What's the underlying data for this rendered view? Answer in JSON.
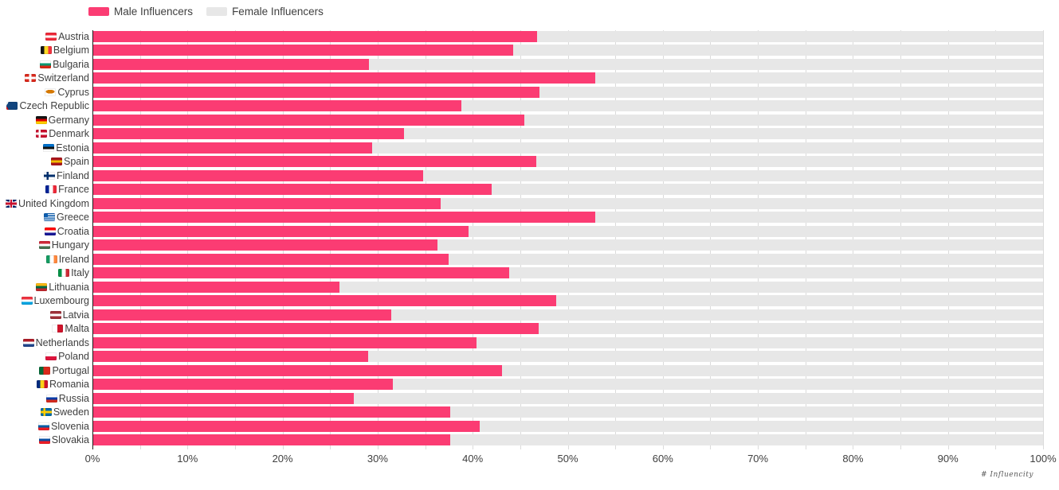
{
  "legend": {
    "male_label": "Male Influencers",
    "female_label": "Female Influencers"
  },
  "colors": {
    "male": "#FB3C73",
    "female": "#E7E7E7",
    "grid": "#DBDBDB",
    "axis": "#1C1C1C",
    "text": "#3F3F3F"
  },
  "x_axis": {
    "ticks": [
      "0%",
      "10%",
      "20%",
      "30%",
      "40%",
      "50%",
      "60%",
      "70%",
      "80%",
      "90%",
      "100%"
    ],
    "min": 0,
    "max": 100,
    "minor_grid_step_pct": 5
  },
  "watermark": "# Influencity",
  "chart_data": {
    "type": "bar",
    "orientation": "horizontal",
    "stacked": true,
    "total": 100,
    "title": "",
    "xlabel": "",
    "ylabel": "",
    "xlim": [
      0,
      100
    ],
    "grid": "vertical gridlines every 5%, behind bars",
    "legend_position": "top-left",
    "categories": [
      "Austria",
      "Belgium",
      "Bulgaria",
      "Switzerland",
      "Cyprus",
      "Czech Republic",
      "Germany",
      "Denmark",
      "Estonia",
      "Spain",
      "Finland",
      "France",
      "United Kingdom",
      "Greece",
      "Croatia",
      "Hungary",
      "Ireland",
      "Italy",
      "Lithuania",
      "Luxembourg",
      "Latvia",
      "Malta",
      "Netherlands",
      "Poland",
      "Portugal",
      "Romania",
      "Russia",
      "Sweden",
      "Slovenia",
      "Slovakia"
    ],
    "series": [
      {
        "name": "Male Influencers",
        "color": "#FB3C73",
        "values": [
          46.8,
          44.3,
          29.1,
          52.9,
          47.0,
          38.8,
          45.4,
          32.8,
          29.4,
          46.7,
          34.8,
          42.0,
          36.6,
          52.9,
          39.6,
          36.3,
          37.5,
          43.8,
          26.0,
          48.8,
          31.4,
          46.9,
          40.4,
          29.0,
          43.1,
          31.6,
          27.5,
          37.6,
          40.7,
          37.6
        ]
      },
      {
        "name": "Female Influencers",
        "color": "#E7E7E7",
        "values": [
          53.2,
          55.7,
          70.9,
          47.1,
          53.0,
          61.2,
          54.6,
          67.2,
          70.6,
          53.3,
          65.2,
          58.0,
          63.4,
          47.1,
          60.4,
          63.7,
          62.5,
          56.2,
          74.0,
          51.2,
          68.6,
          53.1,
          59.6,
          71.0,
          56.9,
          68.4,
          72.5,
          62.4,
          59.3,
          62.4
        ]
      }
    ]
  },
  "countries": [
    {
      "name": "Austria",
      "emoji": "🇦🇹",
      "flag": {
        "t": "h",
        "c": [
          "#ED2939",
          "#FFFFFF",
          "#ED2939"
        ]
      }
    },
    {
      "name": "Belgium",
      "emoji": "🇧🇪",
      "flag": {
        "t": "v",
        "c": [
          "#141414",
          "#FDDA24",
          "#EF3340"
        ]
      }
    },
    {
      "name": "Bulgaria",
      "emoji": "🇧🇬",
      "flag": {
        "t": "h",
        "c": [
          "#FFFFFF",
          "#00966E",
          "#D62612"
        ]
      }
    },
    {
      "name": "Switzerland",
      "emoji": "🇨🇭",
      "flag": {
        "t": "swiss",
        "bg": "#DA291C",
        "cross": "#FFFFFF"
      }
    },
    {
      "name": "Cyprus",
      "emoji": "🇨🇾",
      "flag": {
        "t": "cyprus",
        "bg": "#FFFFFF",
        "emblem": "#D57800"
      }
    },
    {
      "name": "Czech Republic",
      "emoji": "🇨🇿",
      "flag": {
        "t": "czech",
        "tri": "#11457E",
        "top": "#FFFFFF",
        "bottom": "#D7141A"
      }
    },
    {
      "name": "Germany",
      "emoji": "🇩🇪",
      "flag": {
        "t": "h",
        "c": [
          "#141414",
          "#DD0000",
          "#FFCE00"
        ]
      }
    },
    {
      "name": "Denmark",
      "emoji": "🇩🇰",
      "flag": {
        "t": "nordic",
        "bg": "#C8102E",
        "cross": "#FFFFFF"
      }
    },
    {
      "name": "Estonia",
      "emoji": "🇪🇪",
      "flag": {
        "t": "h",
        "c": [
          "#0072CE",
          "#141414",
          "#FFFFFF"
        ]
      }
    },
    {
      "name": "Spain",
      "emoji": "🇪🇸",
      "flag": {
        "t": "h",
        "c": [
          "#AA151B",
          "#F1BF00",
          "#AA151B"
        ]
      }
    },
    {
      "name": "Finland",
      "emoji": "🇫🇮",
      "flag": {
        "t": "nordic",
        "bg": "#FFFFFF",
        "cross": "#002F6C"
      }
    },
    {
      "name": "France",
      "emoji": "🇫🇷",
      "flag": {
        "t": "v",
        "c": [
          "#002395",
          "#FFFFFF",
          "#ED2939"
        ]
      }
    },
    {
      "name": "United Kingdom",
      "emoji": "🇬🇧",
      "flag": {
        "t": "uk",
        "bg": "#012169",
        "cross": "#C8102E",
        "white": "#FFFFFF"
      }
    },
    {
      "name": "Greece",
      "emoji": "🇬🇷",
      "flag": {
        "t": "greece",
        "blue": "#0D5EAF",
        "white": "#FFFFFF"
      }
    },
    {
      "name": "Croatia",
      "emoji": "🇭🇷",
      "flag": {
        "t": "h",
        "c": [
          "#FF0000",
          "#FFFFFF",
          "#171796"
        ]
      }
    },
    {
      "name": "Hungary",
      "emoji": "🇭🇺",
      "flag": {
        "t": "h",
        "c": [
          "#CE2939",
          "#FFFFFF",
          "#477050"
        ]
      }
    },
    {
      "name": "Ireland",
      "emoji": "🇮🇪",
      "flag": {
        "t": "v",
        "c": [
          "#169B62",
          "#FFFFFF",
          "#FF883E"
        ]
      }
    },
    {
      "name": "Italy",
      "emoji": "🇮🇹",
      "flag": {
        "t": "v",
        "c": [
          "#009246",
          "#FFFFFF",
          "#CE2B37"
        ]
      }
    },
    {
      "name": "Lithuania",
      "emoji": "🇱🇹",
      "flag": {
        "t": "h",
        "c": [
          "#FDB913",
          "#006A44",
          "#C1272D"
        ]
      }
    },
    {
      "name": "Luxembourg",
      "emoji": "🇱🇺",
      "flag": {
        "t": "h",
        "c": [
          "#EF3340",
          "#FFFFFF",
          "#00A3E0"
        ]
      }
    },
    {
      "name": "Latvia",
      "emoji": "🇱🇻",
      "flag": {
        "t": "h",
        "c": [
          "#9E3039",
          "#FFFFFF",
          "#9E3039"
        ]
      }
    },
    {
      "name": "Malta",
      "emoji": "🇲🇹",
      "flag": {
        "t": "v",
        "c": [
          "#FFFFFF",
          "#CF142B"
        ]
      }
    },
    {
      "name": "Netherlands",
      "emoji": "🇳🇱",
      "flag": {
        "t": "h",
        "c": [
          "#AE1C28",
          "#FFFFFF",
          "#21468B"
        ]
      }
    },
    {
      "name": "Poland",
      "emoji": "🇵🇱",
      "flag": {
        "t": "h",
        "c": [
          "#FFFFFF",
          "#DC143C"
        ]
      }
    },
    {
      "name": "Portugal",
      "emoji": "🇵🇹",
      "flag": {
        "t": "v2",
        "s": 40,
        "c": [
          "#046A38",
          "#DA291C"
        ]
      }
    },
    {
      "name": "Romania",
      "emoji": "🇷🇴",
      "flag": {
        "t": "v",
        "c": [
          "#002B7F",
          "#FCD116",
          "#CE1126"
        ]
      }
    },
    {
      "name": "Russia",
      "emoji": "🇷🇺",
      "flag": {
        "t": "h",
        "c": [
          "#FFFFFF",
          "#0039A6",
          "#D52B1E"
        ]
      }
    },
    {
      "name": "Sweden",
      "emoji": "🇸🇪",
      "flag": {
        "t": "nordic",
        "bg": "#006AA7",
        "cross": "#FECC02"
      }
    },
    {
      "name": "Slovenia",
      "emoji": "🇸🇮",
      "flag": {
        "t": "h",
        "c": [
          "#FFFFFF",
          "#005DA4",
          "#ED1C24"
        ]
      }
    },
    {
      "name": "Slovakia",
      "emoji": "🇸🇰",
      "flag": {
        "t": "h",
        "c": [
          "#FFFFFF",
          "#0B4EA2",
          "#EE1C25"
        ]
      }
    }
  ]
}
